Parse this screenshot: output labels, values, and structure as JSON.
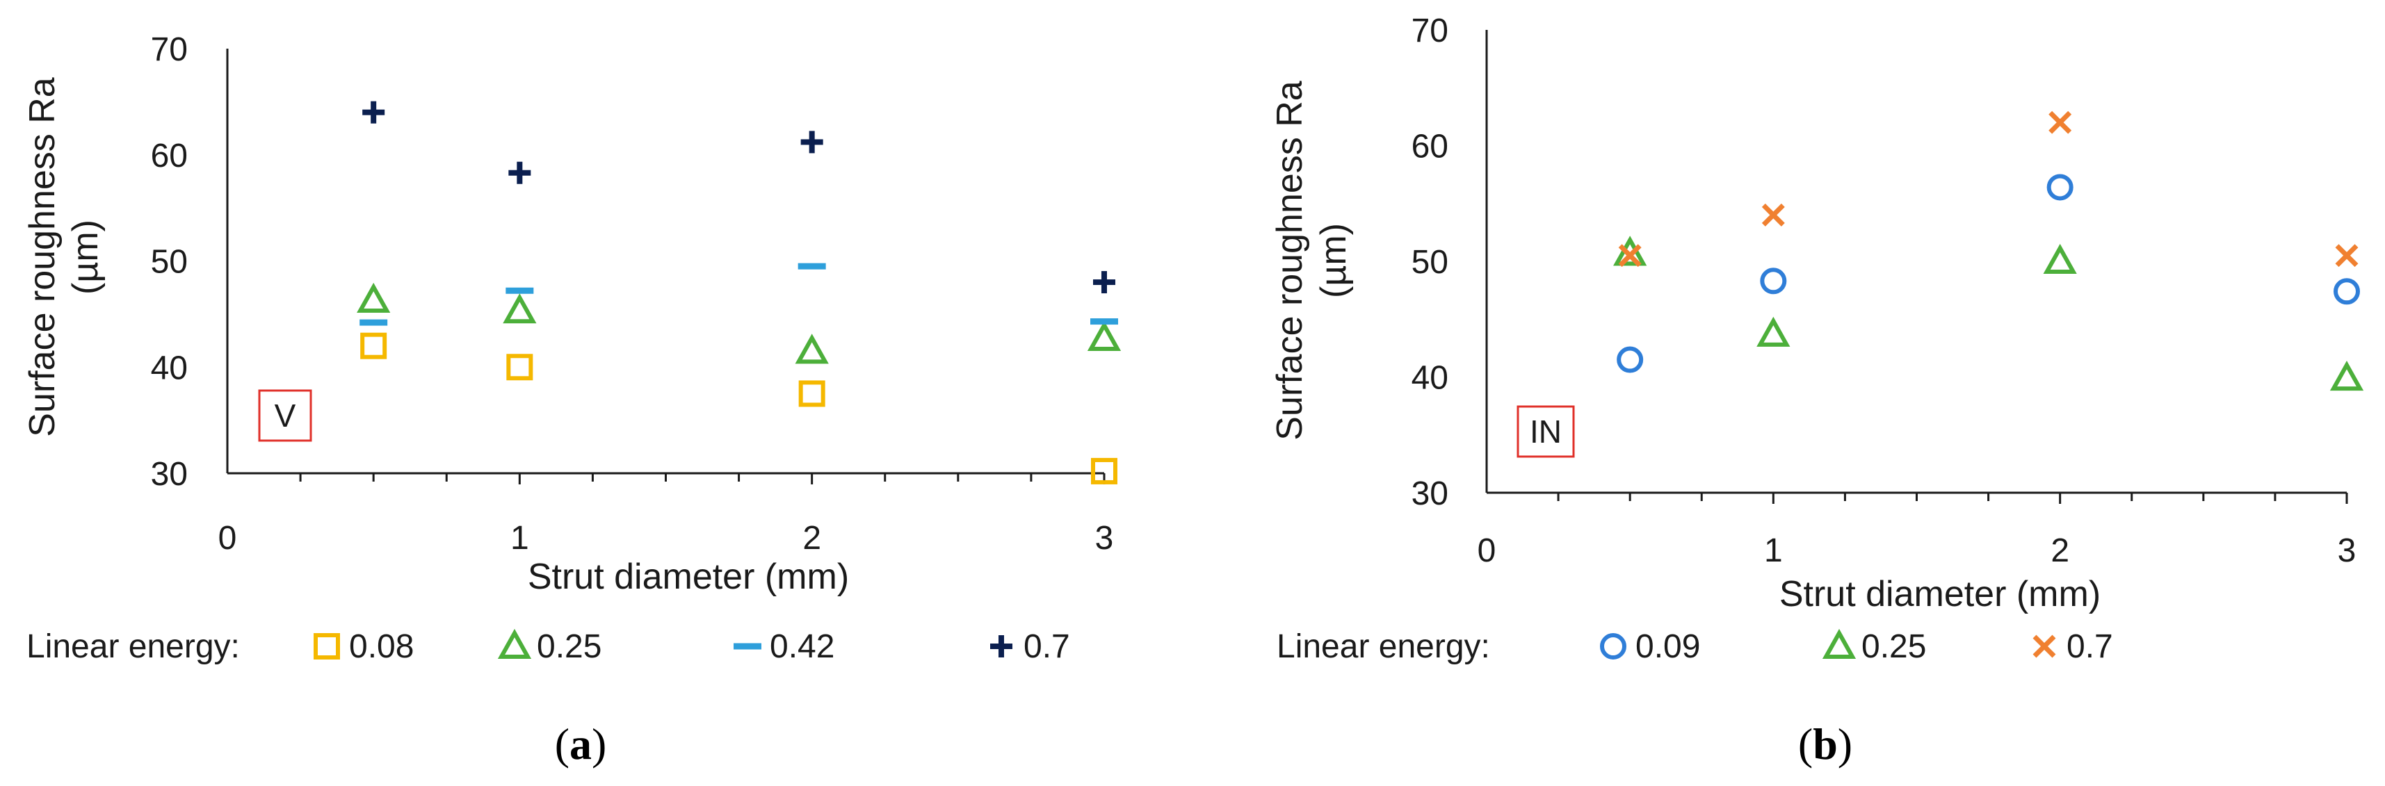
{
  "chart_data": [
    {
      "type": "scatter",
      "panel_label": "a",
      "region_label": "V",
      "xlabel": "Strut diameter (mm)",
      "ylabel_line1": "Surface roughness Ra",
      "ylabel_line2": "(µm)",
      "xlim": [
        0,
        3
      ],
      "ylim": [
        30,
        70
      ],
      "x_ticks": [
        "0",
        "1",
        "2",
        "3"
      ],
      "y_ticks": [
        "30",
        "40",
        "50",
        "60",
        "70"
      ],
      "legend_title": "Linear energy:",
      "series": [
        {
          "name": "0.08",
          "marker": "square",
          "color": "#F5B800",
          "x": [
            0.5,
            1,
            2,
            3
          ],
          "y": [
            42,
            40,
            37.5,
            30.2
          ]
        },
        {
          "name": "0.25",
          "marker": "triangle",
          "color": "#4CAF3A",
          "x": [
            0.5,
            1,
            2,
            3
          ],
          "y": [
            46.3,
            45.3,
            41.5,
            42.7
          ]
        },
        {
          "name": "0.42",
          "marker": "dash",
          "color": "#2E9FDB",
          "x": [
            0.5,
            1,
            2,
            3
          ],
          "y": [
            44.2,
            47.2,
            49.5,
            44.3
          ]
        },
        {
          "name": "0.7",
          "marker": "plus",
          "color": "#0B1F4F",
          "x": [
            0.5,
            1,
            2,
            3
          ],
          "y": [
            64,
            58.3,
            61.2,
            48
          ]
        }
      ]
    },
    {
      "type": "scatter",
      "panel_label": "b",
      "region_label": "IN",
      "xlabel": "Strut diameter (mm)",
      "ylabel_line1": "Surface roughness Ra",
      "ylabel_line2": "(µm)",
      "xlim": [
        0,
        3
      ],
      "ylim": [
        30,
        70
      ],
      "x_ticks": [
        "0",
        "1",
        "2",
        "3"
      ],
      "y_ticks": [
        "30",
        "40",
        "50",
        "60",
        "70"
      ],
      "legend_title": "Linear energy:",
      "series": [
        {
          "name": "0.09",
          "marker": "circle",
          "color": "#2F7ED8",
          "x": [
            0.5,
            1,
            2,
            3
          ],
          "y": [
            41.5,
            48.3,
            56.4,
            47.4
          ]
        },
        {
          "name": "0.25",
          "marker": "triangle",
          "color": "#4CAF3A",
          "x": [
            0.5,
            1,
            2,
            3
          ],
          "y": [
            50.7,
            43.7,
            50,
            39.9
          ]
        },
        {
          "name": "0.7",
          "marker": "cross",
          "color": "#F08030",
          "x": [
            0.5,
            1,
            2,
            3
          ],
          "y": [
            50.5,
            54,
            62,
            50.5
          ]
        }
      ]
    }
  ]
}
